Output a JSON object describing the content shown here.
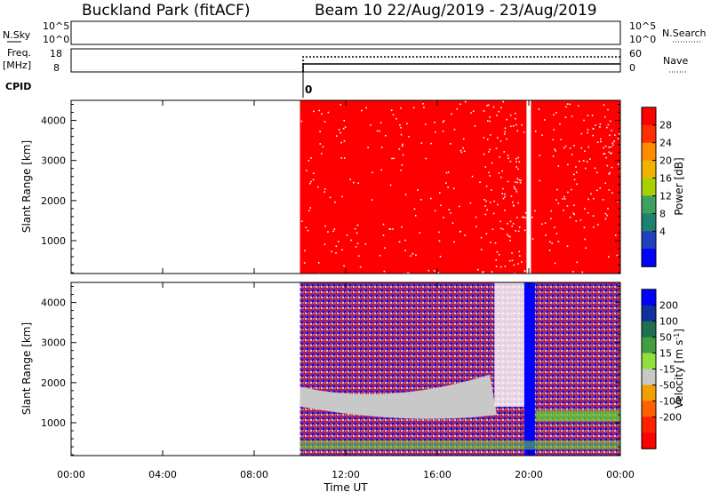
{
  "header": {
    "station": "Buckland Park (fitACF)",
    "beam_info": "Beam 10 22/Aug/2019 - 23/Aug/2019"
  },
  "top_panels": {
    "nsky_label": "N.Sky",
    "nsky_ticks": [
      "10^5",
      "10^0"
    ],
    "nsearch_ticks": [
      "10^5",
      "10^0"
    ],
    "nsearch_label": "N.Search",
    "freq_label_1": "Freq.",
    "freq_label_2": "[MHz]",
    "freq_ticks": [
      "18",
      "8"
    ],
    "nave_ticks": [
      "60",
      "0"
    ],
    "nave_label": "Nave",
    "cpid_label": "CPID",
    "cpid_value": "0"
  },
  "colors": {
    "power_fill": "#ff0000",
    "velocity_blue": "#0000ff",
    "velocity_gray": "#c8c8c8",
    "velocity_purple": "#8a2a9a",
    "velocity_green": "#66cc33"
  },
  "chart_data": [
    {
      "type": "heatmap",
      "panel": "power",
      "ylabel": "Slant Range [km]",
      "xlabel": "",
      "x_ticks": [
        "00:00",
        "04:00",
        "08:00",
        "12:00",
        "16:00",
        "20:00",
        "00:00"
      ],
      "y_ticks": [
        1000,
        2000,
        3000,
        4000
      ],
      "ylim": [
        180,
        4500
      ],
      "xlim_hours": [
        0,
        24
      ],
      "data_start_hour": 10,
      "colorbar": {
        "label": "Power [dB]",
        "ticks": [
          "28",
          "24",
          "20",
          "16",
          "12",
          "8",
          "4"
        ],
        "colors": [
          "#ff0000",
          "#ff3000",
          "#ff8c00",
          "#f0b400",
          "#a8d000",
          "#40a060",
          "#208070",
          "#2040c0",
          "#0000ff"
        ]
      }
    },
    {
      "type": "heatmap",
      "panel": "velocity",
      "ylabel": "Slant Range [km]",
      "xlabel": "Time UT",
      "x_ticks": [
        "00:00",
        "04:00",
        "08:00",
        "12:00",
        "16:00",
        "20:00",
        "00:00"
      ],
      "y_ticks": [
        1000,
        2000,
        3000,
        4000
      ],
      "ylim": [
        180,
        4500
      ],
      "xlim_hours": [
        0,
        24
      ],
      "data_start_hour": 10,
      "colorbar": {
        "label": "Velocity [m s",
        "label_sup": "-1",
        "label_end": "]",
        "ticks": [
          "200",
          "100",
          "50",
          "15",
          "-15",
          "-50",
          "-100",
          "-200"
        ],
        "colors": [
          "#0000ff",
          "#1030a0",
          "#207050",
          "#40a040",
          "#90e040",
          "#c8c8c8",
          "#f0a000",
          "#ff6000",
          "#ff2000",
          "#ff0000"
        ]
      }
    }
  ]
}
